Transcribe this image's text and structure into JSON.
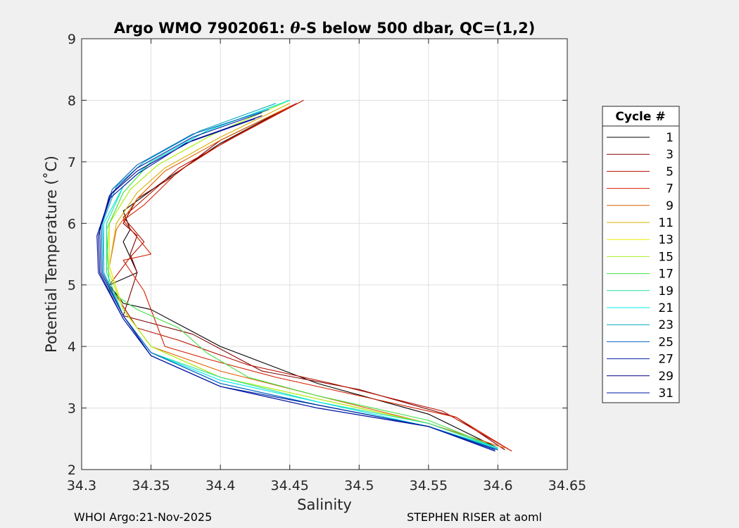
{
  "chart_data": {
    "type": "line",
    "title": "Argo WMO 7902061: θ-S below 500 dbar,  QC=(1,2)",
    "title_parts": {
      "prefix": "Argo WMO 7902061: ",
      "theta": "θ",
      "suffix": "-S below 500 dbar,  QC=(1,2)"
    },
    "xlabel": "Salinity",
    "ylabel": "Potential Temperature (˚C)",
    "xlim": [
      34.3,
      34.65
    ],
    "ylim": [
      2,
      9
    ],
    "xticks": [
      "34.3",
      "34.35",
      "34.4",
      "34.45",
      "34.5",
      "34.55",
      "34.6",
      "34.65"
    ],
    "yticks": [
      "2",
      "3",
      "4",
      "5",
      "6",
      "7",
      "8",
      "9"
    ],
    "grid": true,
    "legend": {
      "title": "Cycle #",
      "placement": "outside-right",
      "entries": [
        {
          "label": "1",
          "color": "#000000"
        },
        {
          "label": "3",
          "color": "#7f0000"
        },
        {
          "label": "5",
          "color": "#b41100"
        },
        {
          "label": "7",
          "color": "#d42000"
        },
        {
          "label": "9",
          "color": "#e06000"
        },
        {
          "label": "11",
          "color": "#d8b000"
        },
        {
          "label": "13",
          "color": "#f0f000"
        },
        {
          "label": "15",
          "color": "#a8f020"
        },
        {
          "label": "17",
          "color": "#40e040"
        },
        {
          "label": "19",
          "color": "#20e0a0"
        },
        {
          "label": "21",
          "color": "#00e8e8"
        },
        {
          "label": "23",
          "color": "#00a8c0"
        },
        {
          "label": "25",
          "color": "#0060c0"
        },
        {
          "label": "27",
          "color": "#0020a0"
        },
        {
          "label": "29",
          "color": "#000080"
        },
        {
          "label": "31",
          "color": "#0018a8"
        }
      ]
    },
    "series": [
      {
        "name": "1",
        "color": "#000000",
        "x": [
          34.45,
          34.4,
          34.36,
          34.33,
          34.335,
          34.33,
          34.34,
          34.32,
          34.33,
          34.35,
          34.4,
          34.47,
          34.55,
          34.6
        ],
        "y": [
          7.9,
          7.3,
          6.7,
          6.2,
          5.9,
          5.7,
          5.2,
          5.0,
          4.7,
          4.6,
          4.0,
          3.4,
          2.9,
          2.35
        ]
      },
      {
        "name": "3",
        "color": "#7f0000",
        "x": [
          34.455,
          34.4,
          34.365,
          34.34,
          34.33,
          34.34,
          34.335,
          34.34,
          34.33,
          34.38,
          34.43,
          34.5,
          34.57,
          34.605
        ],
        "y": [
          7.95,
          7.35,
          6.75,
          6.4,
          6.0,
          5.8,
          5.5,
          5.2,
          4.5,
          4.2,
          3.6,
          3.3,
          2.85,
          2.32
        ]
      },
      {
        "name": "5",
        "color": "#b41100",
        "x": [
          34.46,
          34.41,
          34.37,
          34.35,
          34.33,
          34.345,
          34.335,
          34.32,
          34.34,
          34.37,
          34.42,
          34.48,
          34.56,
          34.61
        ],
        "y": [
          8.0,
          7.4,
          6.9,
          6.5,
          6.1,
          5.7,
          5.45,
          5.0,
          4.3,
          4.1,
          3.7,
          3.4,
          2.95,
          2.3
        ]
      },
      {
        "name": "7",
        "color": "#d42000",
        "x": [
          34.455,
          34.405,
          34.37,
          34.345,
          34.33,
          34.35,
          34.33,
          34.345,
          34.36,
          34.39,
          34.44,
          34.5,
          34.57,
          34.61
        ],
        "y": [
          7.95,
          7.35,
          6.85,
          6.3,
          6.05,
          5.5,
          5.4,
          4.9,
          4.0,
          3.8,
          3.5,
          3.2,
          2.85,
          2.3
        ]
      },
      {
        "name": "9",
        "color": "#e06000",
        "x": [
          34.45,
          34.4,
          34.36,
          34.34,
          34.325,
          34.32,
          34.33,
          34.35,
          34.4,
          34.47,
          34.55,
          34.605
        ],
        "y": [
          7.9,
          7.35,
          6.85,
          6.4,
          5.9,
          5.3,
          4.6,
          4.0,
          3.6,
          3.2,
          2.75,
          2.35
        ]
      },
      {
        "name": "11",
        "color": "#d8b000",
        "x": [
          34.45,
          34.4,
          34.36,
          34.34,
          34.325,
          34.32,
          34.33,
          34.35,
          34.4,
          34.47,
          34.55,
          34.6
        ],
        "y": [
          7.95,
          7.4,
          6.9,
          6.5,
          6.0,
          5.3,
          4.6,
          4.0,
          3.5,
          3.15,
          2.75,
          2.35
        ]
      },
      {
        "name": "13",
        "color": "#f0f000",
        "x": [
          34.45,
          34.395,
          34.355,
          34.335,
          34.32,
          34.32,
          34.33,
          34.35,
          34.4,
          34.47,
          34.55,
          34.6
        ],
        "y": [
          8.0,
          7.45,
          6.95,
          6.55,
          6.0,
          5.3,
          4.6,
          4.0,
          3.5,
          3.15,
          2.75,
          2.35
        ]
      },
      {
        "name": "15",
        "color": "#a8f020",
        "x": [
          34.45,
          34.395,
          34.355,
          34.335,
          34.32,
          34.318,
          34.33,
          34.35,
          34.4,
          34.47,
          34.55,
          34.6
        ],
        "y": [
          8.0,
          7.45,
          6.95,
          6.55,
          6.0,
          5.3,
          4.6,
          4.0,
          3.5,
          3.15,
          2.75,
          2.35
        ]
      },
      {
        "name": "17",
        "color": "#40e040",
        "x": [
          34.45,
          34.39,
          34.35,
          34.33,
          34.318,
          34.32,
          34.34,
          34.37,
          34.39,
          34.42,
          34.47,
          34.55,
          34.6
        ],
        "y": [
          8.0,
          7.5,
          7.0,
          6.5,
          5.9,
          4.9,
          4.6,
          4.3,
          3.9,
          3.5,
          3.2,
          2.8,
          2.35
        ]
      },
      {
        "name": "19",
        "color": "#20e0a0",
        "x": [
          34.45,
          34.39,
          34.35,
          34.33,
          34.318,
          34.318,
          34.33,
          34.35,
          34.4,
          34.47,
          34.55,
          34.6
        ],
        "y": [
          8.0,
          7.5,
          7.0,
          6.6,
          6.0,
          5.2,
          4.5,
          3.9,
          3.5,
          3.1,
          2.75,
          2.35
        ]
      },
      {
        "name": "21",
        "color": "#00e8e8",
        "x": [
          34.45,
          34.39,
          34.35,
          34.33,
          34.316,
          34.316,
          34.33,
          34.35,
          34.4,
          34.47,
          34.55,
          34.6
        ],
        "y": [
          8.0,
          7.5,
          7.0,
          6.6,
          6.0,
          5.2,
          4.5,
          3.9,
          3.45,
          3.1,
          2.7,
          2.35
        ]
      },
      {
        "name": "23",
        "color": "#00a8c0",
        "x": [
          34.44,
          34.385,
          34.345,
          34.325,
          34.315,
          34.316,
          34.33,
          34.35,
          34.4,
          34.47,
          34.55,
          34.6
        ],
        "y": [
          7.95,
          7.5,
          7.0,
          6.6,
          6.0,
          5.2,
          4.5,
          3.9,
          3.4,
          3.05,
          2.7,
          2.33
        ]
      },
      {
        "name": "25",
        "color": "#0060c0",
        "x": [
          34.435,
          34.38,
          34.34,
          34.322,
          34.314,
          34.315,
          34.33,
          34.35,
          34.4,
          34.47,
          34.55,
          34.6
        ],
        "y": [
          7.85,
          7.45,
          6.95,
          6.55,
          6.0,
          5.2,
          4.5,
          3.9,
          3.4,
          3.05,
          2.7,
          2.32
        ]
      },
      {
        "name": "27",
        "color": "#0020a0",
        "x": [
          34.43,
          34.38,
          34.34,
          34.322,
          34.313,
          34.314,
          34.33,
          34.35,
          34.4,
          34.47,
          34.55,
          34.598
        ],
        "y": [
          7.8,
          7.4,
          6.9,
          6.5,
          5.9,
          5.2,
          4.5,
          3.85,
          3.35,
          3.05,
          2.7,
          2.32
        ]
      },
      {
        "name": "29",
        "color": "#000080",
        "x": [
          34.43,
          34.38,
          34.34,
          34.32,
          34.312,
          34.313,
          34.33,
          34.35,
          34.4,
          34.47,
          34.55,
          34.598
        ],
        "y": [
          7.75,
          7.35,
          6.85,
          6.45,
          5.8,
          5.2,
          4.45,
          3.85,
          3.35,
          3.0,
          2.7,
          2.3
        ]
      },
      {
        "name": "31",
        "color": "#0018a8",
        "x": [
          34.425,
          34.375,
          34.34,
          34.32,
          34.311,
          34.312,
          34.33,
          34.35,
          34.4,
          34.47,
          34.55,
          34.598
        ],
        "y": [
          7.7,
          7.3,
          6.8,
          6.4,
          5.8,
          5.2,
          4.45,
          3.85,
          3.35,
          3.0,
          2.7,
          2.3
        ]
      }
    ]
  },
  "footer": {
    "left": "WHOI Argo:21-Nov-2025",
    "right": "STEPHEN RISER at aoml"
  }
}
